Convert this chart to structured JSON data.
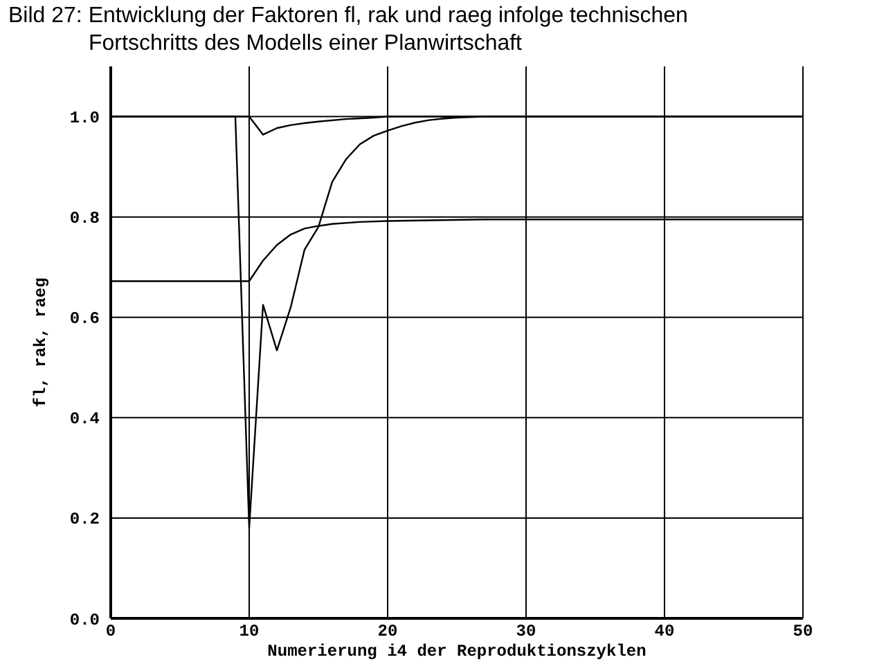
{
  "chart_data": {
    "type": "line",
    "title": "Bild 27: Entwicklung der Faktoren fl, rak und raeg infolge technischen\nFortschritts des Modells einer Planwirtschaft",
    "xlabel": "Numerierung i4 der Reproduktionszyklen",
    "ylabel": "fl, rak, raeg",
    "xlim": [
      0,
      50
    ],
    "xticks": [
      0,
      10,
      20,
      30,
      40,
      50
    ],
    "ylim": [
      0,
      1.1
    ],
    "yticks": [
      {
        "value": 0,
        "label": "0.0"
      },
      {
        "value": 0.2,
        "label": "0.2"
      },
      {
        "value": 0.4,
        "label": "0.4"
      },
      {
        "value": 0.6,
        "label": "0.6"
      },
      {
        "value": 0.8,
        "label": "0.8"
      },
      {
        "value": 1,
        "label": "1.0"
      }
    ],
    "grid": true,
    "marker": "none",
    "line_style": "solid",
    "series": [
      {
        "color": "#000000",
        "x": [
          0,
          9,
          10,
          11,
          12,
          13,
          14,
          15,
          16,
          17,
          18,
          19,
          20,
          21,
          22,
          23,
          24,
          25,
          27,
          50
        ],
        "values": [
          1.0,
          1.0,
          0.18,
          0.625,
          0.534,
          0.62,
          0.735,
          0.78,
          0.87,
          0.915,
          0.945,
          0.962,
          0.972,
          0.981,
          0.988,
          0.993,
          0.996,
          0.998,
          1.0,
          1.0
        ]
      },
      {
        "color": "#000000",
        "x": [
          0,
          10,
          11,
          12,
          13,
          14,
          15,
          16,
          18,
          20,
          27,
          50
        ],
        "values": [
          0.672,
          0.672,
          0.713,
          0.744,
          0.765,
          0.777,
          0.782,
          0.786,
          0.79,
          0.792,
          0.795,
          0.795
        ]
      },
      {
        "color": "#000000",
        "x": [
          0,
          10,
          11,
          12,
          13,
          14,
          15,
          17,
          19,
          20,
          50
        ],
        "values": [
          1.0,
          1.0,
          0.964,
          0.977,
          0.983,
          0.987,
          0.99,
          0.995,
          0.998,
          1.0,
          1.0
        ]
      }
    ]
  }
}
